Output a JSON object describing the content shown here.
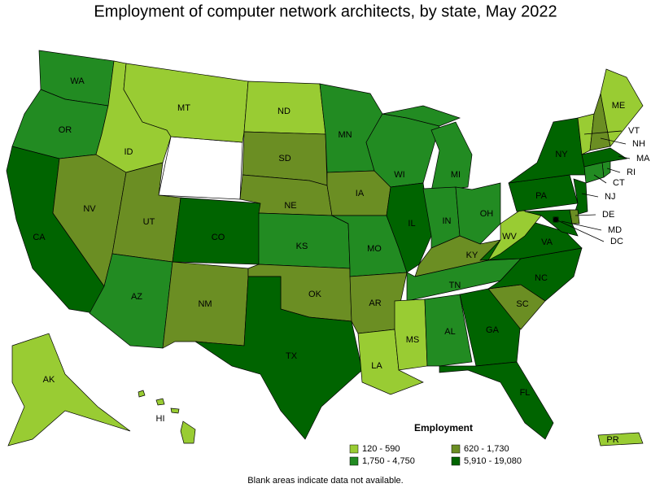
{
  "title": "Employment of computer network architects, by state, May 2022",
  "legend": {
    "title": "Employment",
    "items": [
      {
        "label": "120 - 590",
        "color": "#99cc33"
      },
      {
        "label": "620 - 1,730",
        "color": "#6b8e23"
      },
      {
        "label": "1,750 - 4,750",
        "color": "#228b22"
      },
      {
        "label": "5,910 - 19,080",
        "color": "#006400"
      }
    ]
  },
  "states": [
    {
      "label": "WA",
      "color": "#228b22"
    },
    {
      "label": "OR",
      "color": "#228b22"
    },
    {
      "label": "CA",
      "color": "#006400"
    },
    {
      "label": "NV",
      "color": "#6b8e23"
    },
    {
      "label": "ID",
      "color": "#99cc33"
    },
    {
      "label": "MT",
      "color": "#99cc33"
    },
    {
      "label": "UT",
      "color": "#6b8e23"
    },
    {
      "label": "AZ",
      "color": "#228b22"
    },
    {
      "label": "CO",
      "color": "#006400"
    },
    {
      "label": "NM",
      "color": "#6b8e23"
    },
    {
      "label": "ND",
      "color": "#99cc33"
    },
    {
      "label": "SD",
      "color": "#6b8e23"
    },
    {
      "label": "NE",
      "color": "#6b8e23"
    },
    {
      "label": "KS",
      "color": "#228b22"
    },
    {
      "label": "OK",
      "color": "#6b8e23"
    },
    {
      "label": "TX",
      "color": "#006400"
    },
    {
      "label": "MN",
      "color": "#228b22"
    },
    {
      "label": "IA",
      "color": "#6b8e23"
    },
    {
      "label": "MO",
      "color": "#228b22"
    },
    {
      "label": "AR",
      "color": "#6b8e23"
    },
    {
      "label": "LA",
      "color": "#99cc33"
    },
    {
      "label": "WI",
      "color": "#228b22"
    },
    {
      "label": "IL",
      "color": "#006400"
    },
    {
      "label": "MI",
      "color": "#228b22"
    },
    {
      "label": "IN",
      "color": "#228b22"
    },
    {
      "label": "OH",
      "color": "#228b22"
    },
    {
      "label": "KY",
      "color": "#6b8e23"
    },
    {
      "label": "TN",
      "color": "#228b22"
    },
    {
      "label": "MS",
      "color": "#99cc33"
    },
    {
      "label": "AL",
      "color": "#228b22"
    },
    {
      "label": "GA",
      "color": "#006400"
    },
    {
      "label": "FL",
      "color": "#006400"
    },
    {
      "label": "SC",
      "color": "#6b8e23"
    },
    {
      "label": "NC",
      "color": "#006400"
    },
    {
      "label": "VA",
      "color": "#006400"
    },
    {
      "label": "WV",
      "color": "#99cc33"
    },
    {
      "label": "PA",
      "color": "#006400"
    },
    {
      "label": "NY",
      "color": "#006400"
    },
    {
      "label": "VT",
      "color": "#99cc33"
    },
    {
      "label": "NH",
      "color": "#6b8e23"
    },
    {
      "label": "ME",
      "color": "#99cc33"
    },
    {
      "label": "MA",
      "color": "#006400"
    },
    {
      "label": "RI",
      "color": "#228b22"
    },
    {
      "label": "CT",
      "color": "#228b22"
    },
    {
      "label": "NJ",
      "color": "#006400"
    },
    {
      "label": "DE",
      "color": "#6b8e23"
    },
    {
      "label": "MD",
      "color": "#006400"
    },
    {
      "label": "DC",
      "color": "#006400"
    },
    {
      "label": "AK",
      "color": "#99cc33"
    },
    {
      "label": "HI",
      "color": "#99cc33"
    },
    {
      "label": "PR",
      "color": "#99cc33"
    }
  ],
  "note": "Blank areas indicate data not available."
}
